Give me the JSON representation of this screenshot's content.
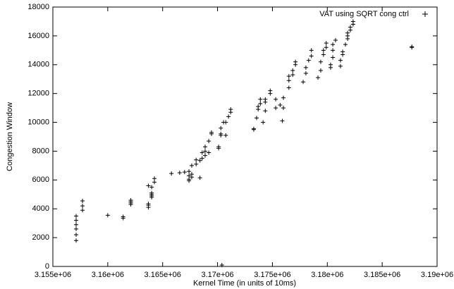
{
  "chart_data": {
    "type": "scatter",
    "xlabel": "Kernel Time (in units of 10ms)",
    "ylabel": "Congestion Window",
    "xlim": [
      3155000,
      3190000
    ],
    "ylim": [
      0,
      18000
    ],
    "xticks": [
      {
        "value": 3155000,
        "label": "3.155e+06"
      },
      {
        "value": 3160000,
        "label": "3.16e+06"
      },
      {
        "value": 3165000,
        "label": "3.165e+06"
      },
      {
        "value": 3170000,
        "label": "3.17e+06"
      },
      {
        "value": 3175000,
        "label": "3.175e+06"
      },
      {
        "value": 3180000,
        "label": "3.18e+06"
      },
      {
        "value": 3185000,
        "label": "3.185e+06"
      },
      {
        "value": 3190000,
        "label": "3.19e+06"
      }
    ],
    "yticks": [
      0,
      2000,
      4000,
      6000,
      8000,
      10000,
      12000,
      14000,
      16000,
      18000
    ],
    "legend": "top-right",
    "series": [
      {
        "name": "VAT using SQRT cong ctrl",
        "color": "#000000",
        "x": [
          3157120,
          3157120,
          3157120,
          3157120,
          3157120,
          3157120,
          3157700,
          3157700,
          3157700,
          3160000,
          3161400,
          3161400,
          3162100,
          3162100,
          3162100,
          3162100,
          3163700,
          3163700,
          3163700,
          3163700,
          3164000,
          3164000,
          3164000,
          3164000,
          3164000,
          3164250,
          3164250,
          3165800,
          3166550,
          3167000,
          3167400,
          3167400,
          3167400,
          3167400,
          3167650,
          3167650,
          3167650,
          3168050,
          3168050,
          3168400,
          3168400,
          3168600,
          3168600,
          3168870,
          3168870,
          3168870,
          3169200,
          3169200,
          3169450,
          3169450,
          3170100,
          3170100,
          3170300,
          3170300,
          3170300,
          3170400,
          3170550,
          3170750,
          3170750,
          3171000,
          3171200,
          3171200,
          3173300,
          3173300,
          3173560,
          3173700,
          3173700,
          3173900,
          3173900,
          3174150,
          3174350,
          3174350,
          3174350,
          3174800,
          3174800,
          3175300,
          3175300,
          3175700,
          3175900,
          3176000,
          3176000,
          3176500,
          3176500,
          3176500,
          3176850,
          3176850,
          3177100,
          3177100,
          3177800,
          3178050,
          3178050,
          3178300,
          3178550,
          3178550,
          3179150,
          3179400,
          3179400,
          3179650,
          3179650,
          3179900,
          3179900,
          3180300,
          3180300,
          3180500,
          3180500,
          3180500,
          3180750,
          3181200,
          3181200,
          3181400,
          3181400,
          3181650,
          3181850,
          3181850,
          3181850,
          3182100,
          3182100,
          3182350,
          3182350,
          3187700,
          3187700
        ],
        "values": [
          1800,
          2200,
          2600,
          2900,
          3200,
          3500,
          3900,
          4200,
          4550,
          3550,
          3350,
          3450,
          4300,
          4400,
          4500,
          4600,
          4100,
          4250,
          4350,
          5600,
          4800,
          4900,
          5000,
          5100,
          5500,
          5850,
          6100,
          6450,
          6500,
          6550,
          5950,
          6050,
          6300,
          6600,
          6200,
          6400,
          7000,
          7100,
          7400,
          6150,
          7350,
          7500,
          7900,
          7700,
          8000,
          8300,
          7900,
          8700,
          9200,
          9300,
          8200,
          8300,
          9100,
          9200,
          9600,
          100,
          10000,
          9100,
          10000,
          10400,
          10700,
          10900,
          9500,
          9550,
          10300,
          10900,
          11100,
          11300,
          11600,
          10000,
          10800,
          11400,
          11600,
          12000,
          12200,
          11000,
          11600,
          11200,
          10100,
          11000,
          11700,
          12400,
          12900,
          13200,
          13300,
          13600,
          14000,
          14200,
          12800,
          13400,
          13800,
          14300,
          14600,
          15000,
          13100,
          13600,
          14200,
          14700,
          15000,
          15200,
          15500,
          13800,
          14000,
          14500,
          15000,
          15400,
          15700,
          13900,
          14300,
          14700,
          14900,
          15400,
          15800,
          16000,
          16200,
          16400,
          16600,
          16800,
          17000,
          15200,
          15250
        ]
      }
    ]
  }
}
